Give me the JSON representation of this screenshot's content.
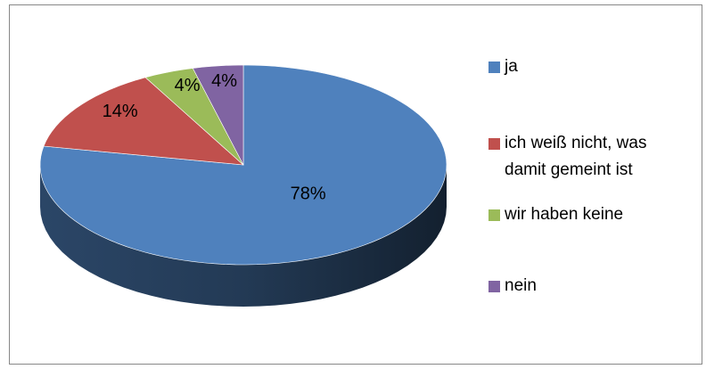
{
  "chart_data": {
    "type": "pie",
    "three_d": true,
    "categories": [
      "ja",
      "ich weiß nicht, was damit gemeint ist",
      "wir haben keine",
      "nein"
    ],
    "values": [
      78,
      14,
      4,
      4
    ],
    "value_labels": [
      "78%",
      "14%",
      "4%",
      "4%"
    ],
    "colors": [
      "#4f81bd",
      "#c0504d",
      "#9bbb59",
      "#8064a2"
    ],
    "legend": "right"
  }
}
